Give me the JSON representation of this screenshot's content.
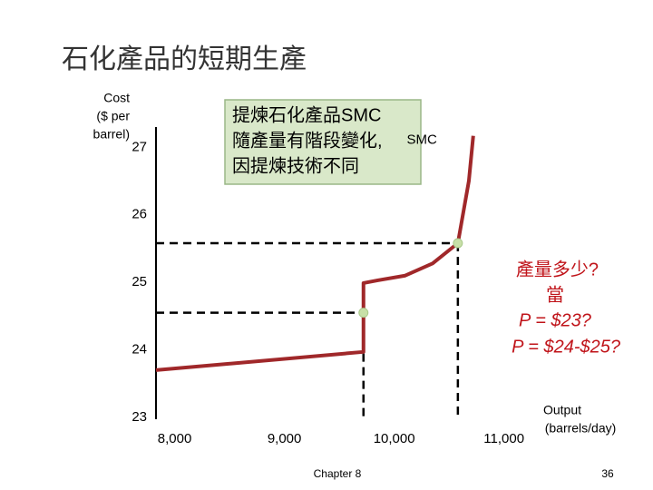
{
  "chart_data": {
    "type": "line",
    "title": "石化產品的短期生產",
    "y_label": [
      "Cost",
      "($ per",
      "barrel)"
    ],
    "x_label": [
      "Output",
      "(barrels/day)"
    ],
    "annotation_box": [
      "提煉石化產品SMC",
      "隨產量有階段變化,",
      "因提煉技術不同"
    ],
    "annotation_question": [
      "產量多少?",
      "當",
      "P = $23?",
      "P = $24-$25?"
    ],
    "series": [
      {
        "name": "SMC",
        "color": "#a0282a",
        "x": [
          7830,
          9720,
          9720,
          9850,
          10100,
          10350,
          10580,
          10680,
          10720
        ],
        "values": [
          23.7,
          23.97,
          24.99,
          25.03,
          25.1,
          25.28,
          25.58,
          26.5,
          27.17
        ]
      }
    ],
    "reference_points": [
      {
        "x": 9720,
        "y": 24.55
      },
      {
        "x": 10580,
        "y": 25.58
      }
    ],
    "xlim": [
      7830,
      11300
    ],
    "ylim": [
      23,
      27.3
    ],
    "xticks": [
      {
        "value": 8000,
        "label": "8,000"
      },
      {
        "value": 9000,
        "label": "9,000"
      },
      {
        "value": 10000,
        "label": "10,000"
      },
      {
        "value": 11000,
        "label": "11,000"
      }
    ],
    "yticks": [
      23,
      24,
      25,
      26,
      27
    ],
    "footer": "Chapter 8",
    "page_number": "36"
  }
}
